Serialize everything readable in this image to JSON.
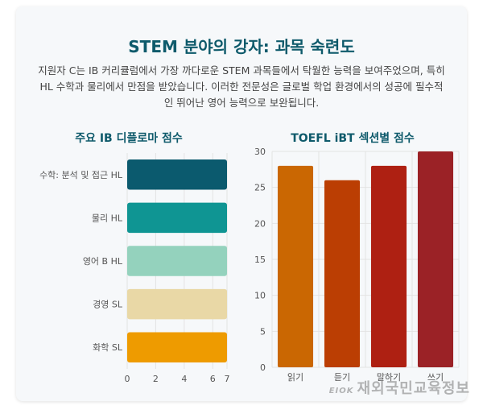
{
  "header": {
    "title": "STEM 분야의 강자: 과목 숙련도",
    "description": "지원자 C는 IB 커리큘럼에서 가장 까다로운 STEM 과목들에서 탁월한 능력을 보여주었으며, 특히 HL 수학과 물리에서 만점을 받았습니다. 이러한 전문성은 글로벌 학업 환경에서의 성공에 필수적인 뛰어난 영어 능력으로 보완됩니다."
  },
  "watermark": {
    "logo": "EIOK",
    "text": "재외국민교육정보"
  },
  "chart_data": [
    {
      "type": "bar",
      "orientation": "horizontal",
      "title": "주요 IB 디플로마 점수",
      "categories": [
        "수학: 분석 및 접근 HL",
        "물리 HL",
        "영어 B HL",
        "경영 SL",
        "화학 SL"
      ],
      "values": [
        7,
        7,
        7,
        7,
        7
      ],
      "colors": [
        "#0b5a6e",
        "#0f9593",
        "#94d2bd",
        "#e9d8a6",
        "#ee9b00"
      ],
      "xlim": [
        0,
        7
      ],
      "xticks": [
        0,
        2,
        4,
        6,
        7
      ],
      "grid": true
    },
    {
      "type": "bar",
      "orientation": "vertical",
      "title": "TOEFL iBT 섹션별 점수",
      "categories": [
        "읽기",
        "듣기",
        "말하기",
        "쓰기"
      ],
      "values": [
        28,
        26,
        28,
        30
      ],
      "colors": [
        "#ca6702",
        "#bb3e03",
        "#ae2012",
        "#9b2226"
      ],
      "ylim": [
        0,
        30
      ],
      "yticks": [
        0,
        5,
        10,
        15,
        20,
        25,
        30
      ],
      "grid": true
    }
  ]
}
